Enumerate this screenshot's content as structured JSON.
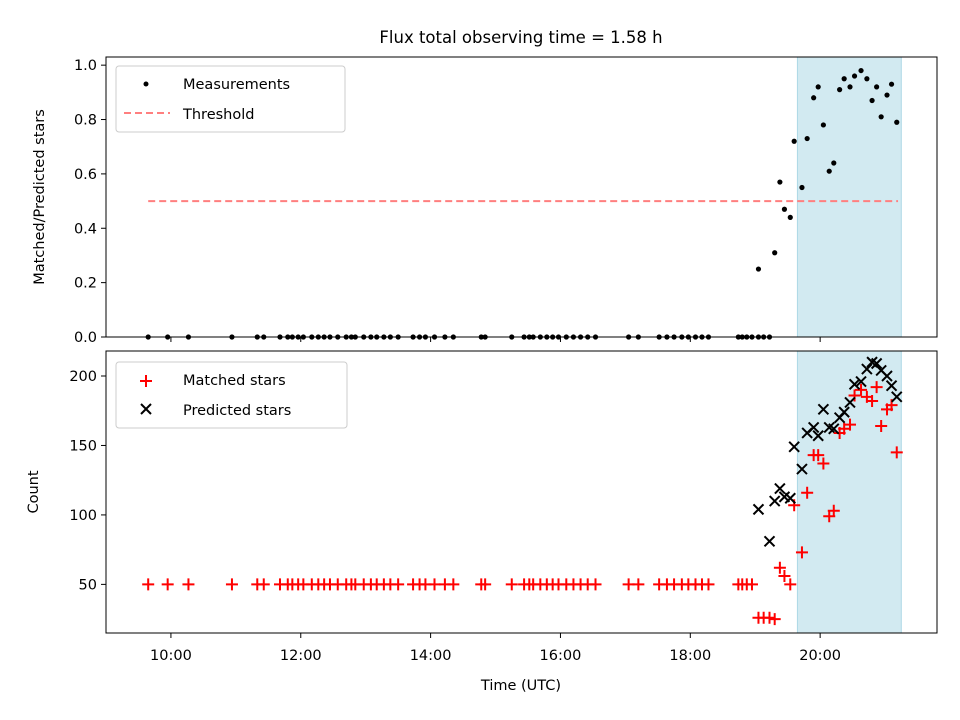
{
  "chart_data": [
    {
      "type": "scatter",
      "title": "Flux total observing time = 1.58 h",
      "xlabel": "",
      "ylabel": "Matched/Predicted stars",
      "xlim": [
        9.0,
        21.8
      ],
      "ylim": [
        0.0,
        1.03
      ],
      "yticks": [
        0.0,
        0.2,
        0.4,
        0.6,
        0.8,
        1.0
      ],
      "ytick_labels": [
        "0.0",
        "0.2",
        "0.4",
        "0.6",
        "0.8",
        "1.0"
      ],
      "legend_position": "top-left",
      "shaded_region": {
        "x": [
          19.65,
          21.25
        ],
        "color": "#add8e6"
      },
      "threshold": {
        "name": "Threshold",
        "value": 0.5,
        "x": [
          9.65,
          21.2
        ],
        "color": "#ff7f7f",
        "style": "dashed"
      },
      "series": [
        {
          "name": "Measurements",
          "color": "#000000",
          "marker": "dot",
          "points": [
            [
              9.65,
              0
            ],
            [
              9.95,
              0
            ],
            [
              10.27,
              0
            ],
            [
              10.94,
              0
            ],
            [
              11.33,
              0
            ],
            [
              11.43,
              0
            ],
            [
              11.68,
              0
            ],
            [
              11.8,
              0
            ],
            [
              11.87,
              0
            ],
            [
              11.96,
              0
            ],
            [
              12.04,
              0
            ],
            [
              12.17,
              0
            ],
            [
              12.27,
              0
            ],
            [
              12.36,
              0
            ],
            [
              12.45,
              0
            ],
            [
              12.57,
              0
            ],
            [
              12.7,
              0
            ],
            [
              12.78,
              0
            ],
            [
              12.84,
              0
            ],
            [
              12.97,
              0
            ],
            [
              13.08,
              0
            ],
            [
              13.17,
              0
            ],
            [
              13.28,
              0
            ],
            [
              13.38,
              0
            ],
            [
              13.5,
              0
            ],
            [
              13.73,
              0
            ],
            [
              13.83,
              0
            ],
            [
              13.92,
              0
            ],
            [
              14.06,
              0
            ],
            [
              14.22,
              0
            ],
            [
              14.35,
              0
            ],
            [
              14.78,
              0
            ],
            [
              14.84,
              0
            ],
            [
              15.25,
              0
            ],
            [
              15.44,
              0
            ],
            [
              15.52,
              0
            ],
            [
              15.58,
              0
            ],
            [
              15.69,
              0
            ],
            [
              15.79,
              0
            ],
            [
              15.88,
              0
            ],
            [
              15.97,
              0
            ],
            [
              16.09,
              0
            ],
            [
              16.2,
              0
            ],
            [
              16.31,
              0
            ],
            [
              16.42,
              0
            ],
            [
              16.54,
              0
            ],
            [
              17.05,
              0
            ],
            [
              17.2,
              0
            ],
            [
              17.52,
              0
            ],
            [
              17.64,
              0
            ],
            [
              17.75,
              0
            ],
            [
              17.87,
              0
            ],
            [
              17.97,
              0
            ],
            [
              18.08,
              0
            ],
            [
              18.18,
              0
            ],
            [
              18.28,
              0
            ],
            [
              18.74,
              0
            ],
            [
              18.8,
              0
            ],
            [
              18.87,
              0
            ],
            [
              18.95,
              0
            ],
            [
              19.05,
              0
            ],
            [
              19.13,
              0
            ],
            [
              19.22,
              0
            ],
            [
              19.05,
              0.25
            ],
            [
              19.3,
              0.31
            ],
            [
              19.38,
              0.57
            ],
            [
              19.45,
              0.47
            ],
            [
              19.54,
              0.44
            ],
            [
              19.6,
              0.72
            ],
            [
              19.72,
              0.55
            ],
            [
              19.8,
              0.73
            ],
            [
              19.9,
              0.88
            ],
            [
              19.97,
              0.92
            ],
            [
              20.05,
              0.78
            ],
            [
              20.14,
              0.61
            ],
            [
              20.21,
              0.64
            ],
            [
              20.3,
              0.91
            ],
            [
              20.37,
              0.95
            ],
            [
              20.46,
              0.92
            ],
            [
              20.53,
              0.96
            ],
            [
              20.63,
              0.98
            ],
            [
              20.72,
              0.95
            ],
            [
              20.8,
              0.87
            ],
            [
              20.87,
              0.92
            ],
            [
              20.94,
              0.81
            ],
            [
              21.03,
              0.89
            ],
            [
              21.1,
              0.93
            ],
            [
              21.18,
              0.79
            ]
          ]
        }
      ]
    },
    {
      "type": "scatter",
      "title": "",
      "xlabel": "Time (UTC)",
      "ylabel": "Count",
      "xlim": [
        9.0,
        21.8
      ],
      "ylim": [
        15,
        218
      ],
      "yticks": [
        50,
        100,
        150,
        200
      ],
      "ytick_labels": [
        "50",
        "100",
        "150",
        "200"
      ],
      "xticks": [
        10,
        12,
        14,
        16,
        18,
        20
      ],
      "xtick_labels": [
        "10:00",
        "12:00",
        "14:00",
        "16:00",
        "18:00",
        "20:00"
      ],
      "legend_position": "top-left",
      "shaded_region": {
        "x": [
          19.65,
          21.25
        ],
        "color": "#add8e6"
      },
      "series": [
        {
          "name": "Matched stars",
          "color": "#ff0000",
          "marker": "plus",
          "points": [
            [
              9.65,
              50
            ],
            [
              9.95,
              50
            ],
            [
              10.27,
              50
            ],
            [
              10.94,
              50
            ],
            [
              11.33,
              50
            ],
            [
              11.43,
              50
            ],
            [
              11.68,
              50
            ],
            [
              11.8,
              50
            ],
            [
              11.87,
              50
            ],
            [
              11.96,
              50
            ],
            [
              12.04,
              50
            ],
            [
              12.17,
              50
            ],
            [
              12.27,
              50
            ],
            [
              12.36,
              50
            ],
            [
              12.45,
              50
            ],
            [
              12.57,
              50
            ],
            [
              12.7,
              50
            ],
            [
              12.78,
              50
            ],
            [
              12.84,
              50
            ],
            [
              12.97,
              50
            ],
            [
              13.08,
              50
            ],
            [
              13.17,
              50
            ],
            [
              13.28,
              50
            ],
            [
              13.38,
              50
            ],
            [
              13.5,
              50
            ],
            [
              13.73,
              50
            ],
            [
              13.83,
              50
            ],
            [
              13.92,
              50
            ],
            [
              14.06,
              50
            ],
            [
              14.22,
              50
            ],
            [
              14.35,
              50
            ],
            [
              14.78,
              50
            ],
            [
              14.84,
              50
            ],
            [
              15.25,
              50
            ],
            [
              15.44,
              50
            ],
            [
              15.52,
              50
            ],
            [
              15.58,
              50
            ],
            [
              15.69,
              50
            ],
            [
              15.79,
              50
            ],
            [
              15.88,
              50
            ],
            [
              15.97,
              50
            ],
            [
              16.09,
              50
            ],
            [
              16.2,
              50
            ],
            [
              16.31,
              50
            ],
            [
              16.42,
              50
            ],
            [
              16.54,
              50
            ],
            [
              17.05,
              50
            ],
            [
              17.2,
              50
            ],
            [
              17.52,
              50
            ],
            [
              17.64,
              50
            ],
            [
              17.75,
              50
            ],
            [
              17.87,
              50
            ],
            [
              17.97,
              50
            ],
            [
              18.08,
              50
            ],
            [
              18.18,
              50
            ],
            [
              18.28,
              50
            ],
            [
              18.74,
              50
            ],
            [
              18.8,
              50
            ],
            [
              18.87,
              50
            ],
            [
              18.95,
              50
            ],
            [
              19.05,
              26
            ],
            [
              19.13,
              26
            ],
            [
              19.22,
              26
            ],
            [
              19.3,
              25
            ],
            [
              19.38,
              62
            ],
            [
              19.45,
              56
            ],
            [
              19.54,
              50
            ],
            [
              19.6,
              107
            ],
            [
              19.72,
              73
            ],
            [
              19.8,
              116
            ],
            [
              19.9,
              143
            ],
            [
              19.97,
              143
            ],
            [
              20.05,
              137
            ],
            [
              20.14,
              99
            ],
            [
              20.21,
              103
            ],
            [
              20.3,
              159
            ],
            [
              20.37,
              162
            ],
            [
              20.46,
              165
            ],
            [
              20.53,
              186
            ],
            [
              20.63,
              190
            ],
            [
              20.72,
              185
            ],
            [
              20.8,
              182
            ],
            [
              20.87,
              192
            ],
            [
              20.94,
              164
            ],
            [
              21.03,
              176
            ],
            [
              21.1,
              179
            ],
            [
              21.18,
              145
            ]
          ]
        },
        {
          "name": "Predicted stars",
          "color": "#000000",
          "marker": "x",
          "points": [
            [
              19.05,
              104
            ],
            [
              19.22,
              81
            ],
            [
              19.3,
              110
            ],
            [
              19.38,
              119
            ],
            [
              19.45,
              113
            ],
            [
              19.54,
              112
            ],
            [
              19.6,
              149
            ],
            [
              19.72,
              133
            ],
            [
              19.8,
              159
            ],
            [
              19.9,
              163
            ],
            [
              19.97,
              157
            ],
            [
              20.05,
              176
            ],
            [
              20.14,
              163
            ],
            [
              20.21,
              162
            ],
            [
              20.3,
              170
            ],
            [
              20.37,
              174
            ],
            [
              20.46,
              181
            ],
            [
              20.53,
              194
            ],
            [
              20.63,
              196
            ],
            [
              20.72,
              205
            ],
            [
              20.8,
              210
            ],
            [
              20.87,
              209
            ],
            [
              20.94,
              204
            ],
            [
              21.03,
              200
            ],
            [
              21.1,
              193
            ],
            [
              21.18,
              185
            ]
          ]
        }
      ]
    }
  ]
}
